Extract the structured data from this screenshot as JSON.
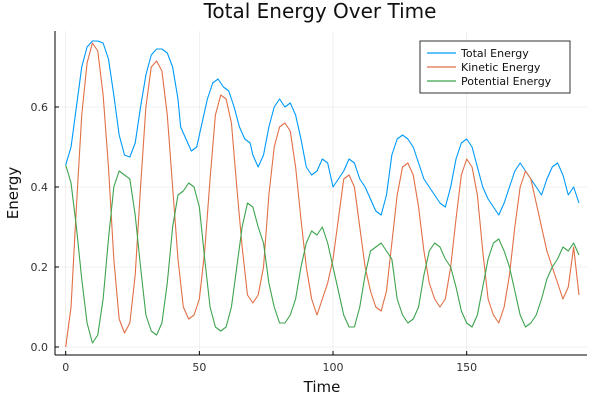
{
  "chart_data": {
    "type": "line",
    "title": "Total Energy Over Time",
    "xlabel": "Time",
    "ylabel": "Energy",
    "xlim": [
      -4,
      195
    ],
    "ylim": [
      -0.02,
      0.79
    ],
    "xticks": [
      0,
      50,
      100,
      150
    ],
    "yticks": [
      0.0,
      0.2,
      0.4,
      0.6
    ],
    "xtick_labels": [
      "0",
      "50",
      "100",
      "150"
    ],
    "ytick_labels": [
      "0.0",
      "0.2",
      "0.4",
      "0.6"
    ],
    "grid": true,
    "legend": "top-right",
    "series": [
      {
        "name": "Total Energy",
        "color": "#009AFA",
        "points": [
          [
            0,
            0.455
          ],
          [
            2,
            0.5
          ],
          [
            4,
            0.6
          ],
          [
            6,
            0.7
          ],
          [
            8,
            0.75
          ],
          [
            10,
            0.765
          ],
          [
            12,
            0.765
          ],
          [
            14,
            0.76
          ],
          [
            16,
            0.72
          ],
          [
            18,
            0.63
          ],
          [
            20,
            0.53
          ],
          [
            22,
            0.48
          ],
          [
            24,
            0.475
          ],
          [
            26,
            0.51
          ],
          [
            28,
            0.6
          ],
          [
            30,
            0.68
          ],
          [
            32,
            0.73
          ],
          [
            34,
            0.745
          ],
          [
            36,
            0.745
          ],
          [
            38,
            0.735
          ],
          [
            40,
            0.7
          ],
          [
            42,
            0.62
          ],
          [
            43,
            0.55
          ],
          [
            45,
            0.52
          ],
          [
            47,
            0.49
          ],
          [
            49,
            0.5
          ],
          [
            51,
            0.56
          ],
          [
            53,
            0.62
          ],
          [
            55,
            0.66
          ],
          [
            57,
            0.67
          ],
          [
            59,
            0.65
          ],
          [
            61,
            0.64
          ],
          [
            63,
            0.6
          ],
          [
            65,
            0.55
          ],
          [
            67,
            0.52
          ],
          [
            69,
            0.51
          ],
          [
            70,
            0.48
          ],
          [
            72,
            0.45
          ],
          [
            74,
            0.48
          ],
          [
            76,
            0.55
          ],
          [
            78,
            0.6
          ],
          [
            80,
            0.62
          ],
          [
            82,
            0.6
          ],
          [
            84,
            0.61
          ],
          [
            86,
            0.58
          ],
          [
            88,
            0.52
          ],
          [
            90,
            0.45
          ],
          [
            92,
            0.43
          ],
          [
            94,
            0.44
          ],
          [
            96,
            0.47
          ],
          [
            98,
            0.46
          ],
          [
            100,
            0.4
          ],
          [
            102,
            0.42
          ],
          [
            104,
            0.44
          ],
          [
            106,
            0.47
          ],
          [
            108,
            0.46
          ],
          [
            110,
            0.42
          ],
          [
            112,
            0.4
          ],
          [
            114,
            0.37
          ],
          [
            116,
            0.34
          ],
          [
            118,
            0.33
          ],
          [
            120,
            0.38
          ],
          [
            122,
            0.48
          ],
          [
            124,
            0.52
          ],
          [
            126,
            0.53
          ],
          [
            128,
            0.52
          ],
          [
            130,
            0.5
          ],
          [
            132,
            0.46
          ],
          [
            134,
            0.42
          ],
          [
            136,
            0.4
          ],
          [
            138,
            0.38
          ],
          [
            140,
            0.36
          ],
          [
            142,
            0.35
          ],
          [
            144,
            0.4
          ],
          [
            146,
            0.47
          ],
          [
            148,
            0.51
          ],
          [
            150,
            0.52
          ],
          [
            152,
            0.5
          ],
          [
            154,
            0.45
          ],
          [
            156,
            0.4
          ],
          [
            158,
            0.37
          ],
          [
            160,
            0.35
          ],
          [
            162,
            0.33
          ],
          [
            164,
            0.36
          ],
          [
            166,
            0.4
          ],
          [
            168,
            0.44
          ],
          [
            170,
            0.46
          ],
          [
            172,
            0.44
          ],
          [
            174,
            0.42
          ],
          [
            176,
            0.4
          ],
          [
            178,
            0.38
          ],
          [
            180,
            0.42
          ],
          [
            182,
            0.45
          ],
          [
            184,
            0.46
          ],
          [
            186,
            0.43
          ],
          [
            188,
            0.38
          ],
          [
            190,
            0.4
          ],
          [
            192,
            0.36
          ]
        ]
      },
      {
        "name": "Kinetic Energy",
        "color": "#E26F46",
        "points": [
          [
            0,
            0.0
          ],
          [
            2,
            0.1
          ],
          [
            4,
            0.35
          ],
          [
            6,
            0.58
          ],
          [
            8,
            0.71
          ],
          [
            10,
            0.76
          ],
          [
            12,
            0.74
          ],
          [
            14,
            0.63
          ],
          [
            16,
            0.45
          ],
          [
            18,
            0.22
          ],
          [
            20,
            0.07
          ],
          [
            22,
            0.035
          ],
          [
            24,
            0.06
          ],
          [
            26,
            0.18
          ],
          [
            28,
            0.4
          ],
          [
            30,
            0.6
          ],
          [
            32,
            0.7
          ],
          [
            34,
            0.715
          ],
          [
            36,
            0.69
          ],
          [
            38,
            0.58
          ],
          [
            40,
            0.4
          ],
          [
            42,
            0.22
          ],
          [
            44,
            0.1
          ],
          [
            46,
            0.07
          ],
          [
            48,
            0.08
          ],
          [
            50,
            0.12
          ],
          [
            52,
            0.24
          ],
          [
            54,
            0.42
          ],
          [
            56,
            0.58
          ],
          [
            58,
            0.63
          ],
          [
            60,
            0.62
          ],
          [
            62,
            0.56
          ],
          [
            64,
            0.4
          ],
          [
            66,
            0.25
          ],
          [
            68,
            0.13
          ],
          [
            70,
            0.11
          ],
          [
            72,
            0.13
          ],
          [
            74,
            0.2
          ],
          [
            76,
            0.38
          ],
          [
            78,
            0.5
          ],
          [
            80,
            0.55
          ],
          [
            82,
            0.56
          ],
          [
            84,
            0.54
          ],
          [
            86,
            0.45
          ],
          [
            88,
            0.32
          ],
          [
            90,
            0.2
          ],
          [
            92,
            0.12
          ],
          [
            94,
            0.08
          ],
          [
            96,
            0.12
          ],
          [
            98,
            0.16
          ],
          [
            100,
            0.22
          ],
          [
            102,
            0.32
          ],
          [
            104,
            0.42
          ],
          [
            106,
            0.43
          ],
          [
            108,
            0.4
          ],
          [
            110,
            0.3
          ],
          [
            112,
            0.2
          ],
          [
            114,
            0.14
          ],
          [
            116,
            0.1
          ],
          [
            118,
            0.09
          ],
          [
            120,
            0.14
          ],
          [
            122,
            0.26
          ],
          [
            124,
            0.38
          ],
          [
            126,
            0.45
          ],
          [
            128,
            0.46
          ],
          [
            130,
            0.43
          ],
          [
            132,
            0.35
          ],
          [
            134,
            0.24
          ],
          [
            136,
            0.16
          ],
          [
            138,
            0.12
          ],
          [
            140,
            0.1
          ],
          [
            142,
            0.12
          ],
          [
            144,
            0.2
          ],
          [
            146,
            0.32
          ],
          [
            148,
            0.43
          ],
          [
            150,
            0.47
          ],
          [
            152,
            0.45
          ],
          [
            154,
            0.38
          ],
          [
            156,
            0.24
          ],
          [
            158,
            0.12
          ],
          [
            160,
            0.08
          ],
          [
            162,
            0.06
          ],
          [
            164,
            0.1
          ],
          [
            166,
            0.18
          ],
          [
            168,
            0.3
          ],
          [
            170,
            0.4
          ],
          [
            172,
            0.44
          ],
          [
            174,
            0.42
          ],
          [
            176,
            0.36
          ],
          [
            178,
            0.3
          ],
          [
            180,
            0.24
          ],
          [
            182,
            0.2
          ],
          [
            184,
            0.16
          ],
          [
            186,
            0.12
          ],
          [
            188,
            0.15
          ],
          [
            190,
            0.25
          ],
          [
            192,
            0.13
          ]
        ]
      },
      {
        "name": "Potential Energy",
        "color": "#3EA44E",
        "points": [
          [
            0,
            0.455
          ],
          [
            2,
            0.41
          ],
          [
            4,
            0.3
          ],
          [
            6,
            0.17
          ],
          [
            8,
            0.06
          ],
          [
            10,
            0.01
          ],
          [
            12,
            0.03
          ],
          [
            14,
            0.12
          ],
          [
            16,
            0.27
          ],
          [
            18,
            0.4
          ],
          [
            20,
            0.44
          ],
          [
            22,
            0.43
          ],
          [
            24,
            0.42
          ],
          [
            26,
            0.33
          ],
          [
            28,
            0.2
          ],
          [
            30,
            0.08
          ],
          [
            32,
            0.04
          ],
          [
            34,
            0.03
          ],
          [
            36,
            0.06
          ],
          [
            38,
            0.16
          ],
          [
            40,
            0.3
          ],
          [
            42,
            0.38
          ],
          [
            44,
            0.39
          ],
          [
            46,
            0.41
          ],
          [
            48,
            0.4
          ],
          [
            50,
            0.35
          ],
          [
            52,
            0.22
          ],
          [
            54,
            0.1
          ],
          [
            56,
            0.05
          ],
          [
            58,
            0.04
          ],
          [
            60,
            0.05
          ],
          [
            62,
            0.1
          ],
          [
            64,
            0.2
          ],
          [
            66,
            0.3
          ],
          [
            68,
            0.36
          ],
          [
            70,
            0.35
          ],
          [
            72,
            0.3
          ],
          [
            74,
            0.26
          ],
          [
            76,
            0.16
          ],
          [
            78,
            0.1
          ],
          [
            80,
            0.06
          ],
          [
            82,
            0.06
          ],
          [
            84,
            0.08
          ],
          [
            86,
            0.12
          ],
          [
            88,
            0.2
          ],
          [
            90,
            0.26
          ],
          [
            92,
            0.29
          ],
          [
            94,
            0.28
          ],
          [
            96,
            0.3
          ],
          [
            98,
            0.26
          ],
          [
            100,
            0.2
          ],
          [
            102,
            0.14
          ],
          [
            104,
            0.08
          ],
          [
            106,
            0.05
          ],
          [
            108,
            0.05
          ],
          [
            110,
            0.1
          ],
          [
            112,
            0.18
          ],
          [
            114,
            0.24
          ],
          [
            116,
            0.25
          ],
          [
            118,
            0.26
          ],
          [
            120,
            0.24
          ],
          [
            122,
            0.22
          ],
          [
            124,
            0.12
          ],
          [
            126,
            0.08
          ],
          [
            128,
            0.06
          ],
          [
            130,
            0.07
          ],
          [
            132,
            0.1
          ],
          [
            134,
            0.18
          ],
          [
            136,
            0.24
          ],
          [
            138,
            0.26
          ],
          [
            140,
            0.25
          ],
          [
            142,
            0.22
          ],
          [
            144,
            0.2
          ],
          [
            146,
            0.15
          ],
          [
            148,
            0.09
          ],
          [
            150,
            0.06
          ],
          [
            152,
            0.05
          ],
          [
            154,
            0.08
          ],
          [
            156,
            0.15
          ],
          [
            158,
            0.22
          ],
          [
            160,
            0.26
          ],
          [
            162,
            0.27
          ],
          [
            164,
            0.24
          ],
          [
            166,
            0.2
          ],
          [
            168,
            0.14
          ],
          [
            170,
            0.08
          ],
          [
            172,
            0.05
          ],
          [
            174,
            0.06
          ],
          [
            176,
            0.08
          ],
          [
            178,
            0.12
          ],
          [
            180,
            0.17
          ],
          [
            182,
            0.2
          ],
          [
            184,
            0.22
          ],
          [
            186,
            0.25
          ],
          [
            188,
            0.24
          ],
          [
            190,
            0.26
          ],
          [
            192,
            0.23
          ]
        ]
      }
    ]
  }
}
